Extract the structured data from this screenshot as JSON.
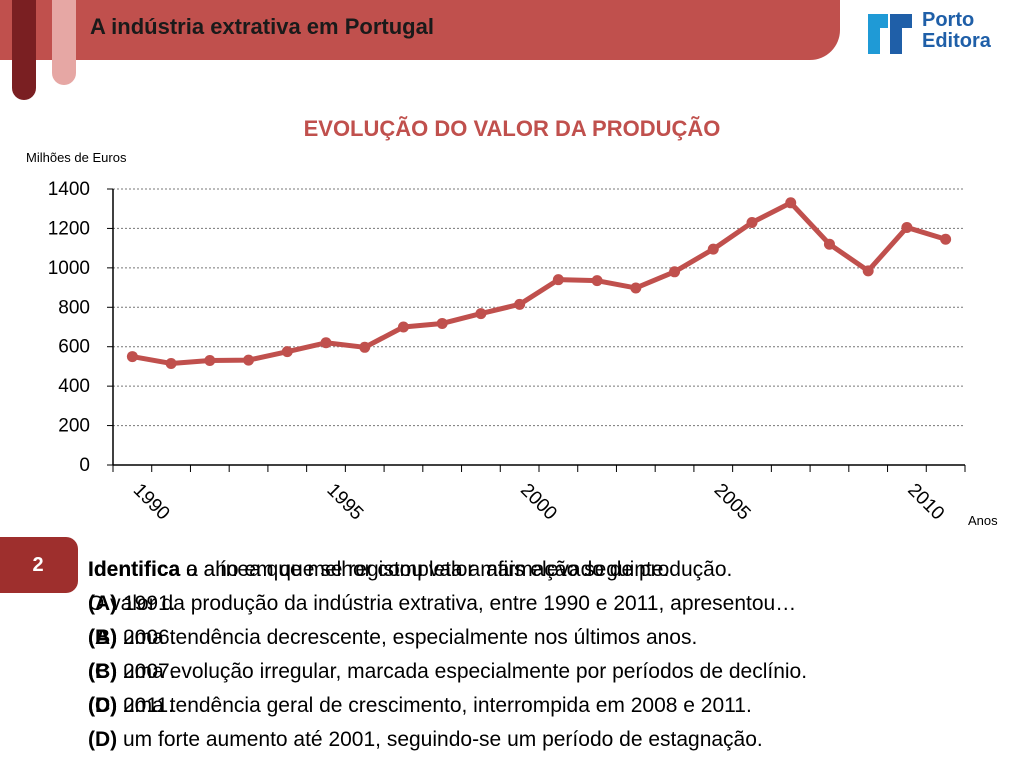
{
  "slide": {
    "title": "A indústria extrativa em Portugal",
    "logo_line1": "Porto",
    "logo_line2": "Editora",
    "question_number": "2",
    "lines": [
      {
        "label": "Identifica o ano em que se registou valor mais elevado de produção.",
        "bold": "Identifica",
        "rest": " o ano em que se registou valor mais elevado de produção."
      },
      {
        "label": "(A) 1991.",
        "bold": "(A)",
        "rest": " 1991."
      },
      {
        "label": "(B) 2006.",
        "bold": "(B)",
        "rest": " 2006."
      },
      {
        "label": "(C) 2007.",
        "bold": "(C)",
        "rest": " 2007."
      },
      {
        "label": "(D) 2011.",
        "bold": "(D)",
        "rest": " 2011."
      }
    ],
    "overlay_lines": [
      {
        "bold": "Identifica",
        "rest": " a alínea que melhor completa a afirmação seguinte."
      },
      {
        "bold": "",
        "rest": "O valor da produção da indústria extrativa, entre 1990 e 2011, apresentou…"
      },
      {
        "bold": "(A)",
        "rest": " uma tendência decrescente, especialmente nos últimos anos."
      },
      {
        "bold": "(B)",
        "rest": " uma evolução irregular, marcada especialmente por períodos de declínio."
      },
      {
        "bold": "(C)",
        "rest": " uma tendência geral de crescimento, interrompida em 2008 e 2011."
      },
      {
        "bold": "(D)",
        "rest": " um forte aumento até 2001, seguindo-se um período de estagnação."
      }
    ]
  },
  "chart_data": {
    "type": "line",
    "title": "EVOLUÇÃO DO VALOR DA PRODUÇÃO",
    "ylabel": "Milhões de Euros",
    "xlabel": "Anos",
    "ylim": [
      0,
      1400
    ],
    "yticks": [
      0,
      200,
      400,
      600,
      800,
      1000,
      1200,
      1400
    ],
    "xtick_labels": [
      "1990",
      "1995",
      "2000",
      "2005",
      "2010"
    ],
    "grid": "horizontal dotted",
    "color": "#c0504d",
    "x": [
      1990,
      1991,
      1992,
      1993,
      1994,
      1995,
      1996,
      1997,
      1998,
      1999,
      2000,
      2001,
      2002,
      2003,
      2004,
      2005,
      2006,
      2007,
      2008,
      2009,
      2010,
      2011
    ],
    "values": [
      550,
      515,
      530,
      532,
      575,
      620,
      597,
      700,
      718,
      768,
      815,
      940,
      935,
      898,
      980,
      1095,
      1230,
      1330,
      1120,
      985,
      1205,
      1145
    ]
  }
}
